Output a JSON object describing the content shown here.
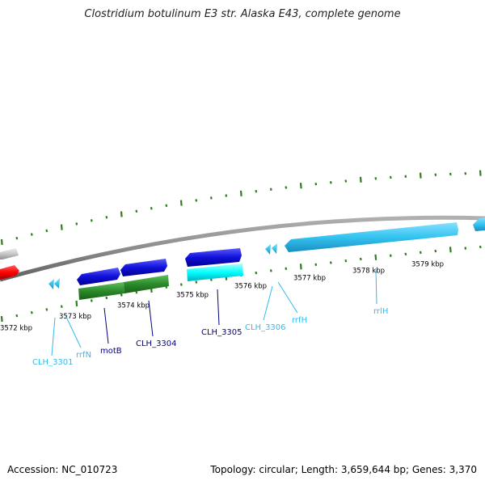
{
  "header": {
    "title": "Clostridium botulinum E3 str. Alaska E43, complete genome"
  },
  "footer": {
    "accession": "Accession: NC_010723",
    "topology": "Topology: circular; Length: 3,659,644 bp; Genes: 3,370"
  },
  "colors": {
    "backbone": "#8c8c8c",
    "tick": "#2e7d1e",
    "gene_blue": "#1010d8",
    "gene_cyan": "#33ccff",
    "gene_green": "#2b8a2b",
    "gene_cyan_bright": "#00ffff",
    "gene_red": "#ff0000",
    "gene_gray": "#c8c8c8",
    "label_dark": "#000080",
    "label_cyan": "#33bbee"
  },
  "scale_labels": [
    {
      "text": "3572 kbp",
      "kbp": 3572
    },
    {
      "text": "3573 kbp",
      "kbp": 3573
    },
    {
      "text": "3574 kbp",
      "kbp": 3574
    },
    {
      "text": "3575 kbp",
      "kbp": 3575
    },
    {
      "text": "3576 kbp",
      "kbp": 3576
    },
    {
      "text": "3577 kbp",
      "kbp": 3577
    },
    {
      "text": "3578 kbp",
      "kbp": 3578
    },
    {
      "text": "3579 kbp",
      "kbp": 3579
    }
  ],
  "gene_labels": [
    {
      "text": "CLH_3301",
      "color": "label_cyan"
    },
    {
      "text": "rrfN",
      "color": "label_cyan"
    },
    {
      "text": "motB",
      "color": "label_dark"
    },
    {
      "text": "CLH_3304",
      "color": "label_dark"
    },
    {
      "text": "CLH_3305",
      "color": "label_dark"
    },
    {
      "text": "CLH_3306",
      "color": "label_cyan"
    },
    {
      "text": "rrfH",
      "color": "label_cyan"
    },
    {
      "text": "rrlH",
      "color": "label_cyan"
    }
  ]
}
